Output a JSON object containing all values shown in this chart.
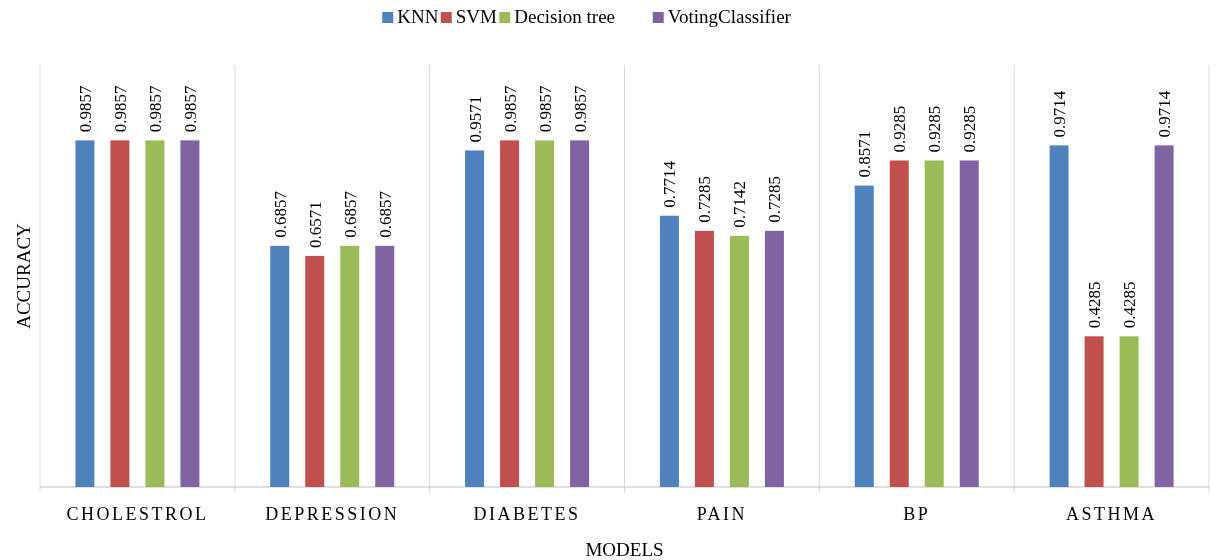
{
  "chart_data": {
    "type": "bar",
    "xlabel": "MODELS",
    "ylabel": "ACCURACY",
    "categories": [
      "CHOLESTROL",
      "DEPRESSION",
      "DIABETES",
      "PAIN",
      "BP",
      "ASTHMA"
    ],
    "series": [
      {
        "name": "KNN",
        "color": "#4f81bd",
        "values": [
          0.9857,
          0.6857,
          0.9571,
          0.7714,
          0.8571,
          0.9714
        ]
      },
      {
        "name": "SVM",
        "color": "#c0504d",
        "values": [
          0.9857,
          0.6571,
          0.9857,
          0.7285,
          0.9285,
          0.4285
        ]
      },
      {
        "name": "Decision tree",
        "color": "#9bbb59",
        "values": [
          0.9857,
          0.6857,
          0.9857,
          0.7142,
          0.9285,
          0.4285
        ]
      },
      {
        "name": "VotingClassifier",
        "color": "#8064a2",
        "values": [
          0.9857,
          0.6857,
          0.9857,
          0.7285,
          0.9285,
          0.9714
        ]
      }
    ],
    "ylim": [
      0,
      1.2
    ],
    "grid": "x",
    "legend": "top",
    "data_labels": true,
    "tick_labels": "x"
  }
}
